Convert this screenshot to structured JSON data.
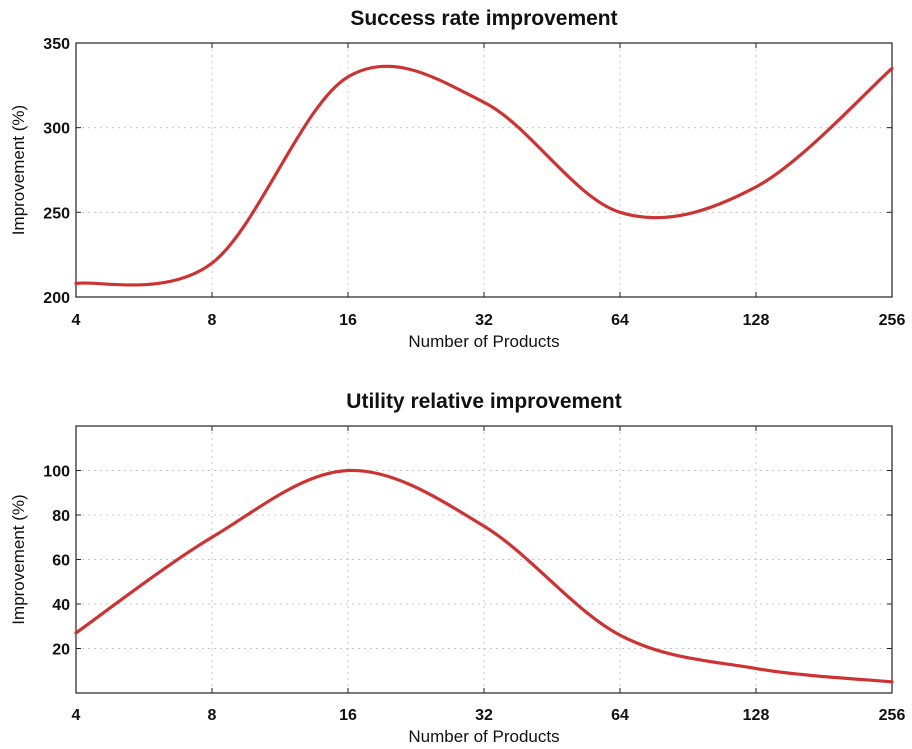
{
  "chart_data": [
    {
      "type": "line",
      "title": "Success rate improvement",
      "xlabel": "Number of Products",
      "ylabel": "Improvement (%)",
      "x_scale": "log2",
      "x": [
        4,
        8,
        16,
        32,
        64,
        128,
        256
      ],
      "x_tick_labels": [
        "4",
        "8",
        "16",
        "32",
        "64",
        "128",
        "256"
      ],
      "ylim": [
        200,
        350
      ],
      "y_ticks": [
        200,
        250,
        300,
        350
      ],
      "y_tick_labels": [
        "200",
        "250",
        "300",
        "350"
      ],
      "grid": true,
      "series": [
        {
          "values": [
            208,
            220,
            330,
            315,
            250,
            265,
            335
          ],
          "color": "#cc3333"
        }
      ]
    },
    {
      "type": "line",
      "title": "Utility relative improvement",
      "xlabel": "Number of Products",
      "ylabel": "Improvement (%)",
      "x_scale": "log2",
      "x": [
        4,
        8,
        16,
        32,
        64,
        128,
        256
      ],
      "x_tick_labels": [
        "4",
        "8",
        "16",
        "32",
        "64",
        "128",
        "256"
      ],
      "ylim": [
        0,
        120
      ],
      "y_ticks": [
        20,
        40,
        60,
        80,
        100
      ],
      "y_tick_labels": [
        "20",
        "40",
        "60",
        "80",
        "100"
      ],
      "grid": true,
      "series": [
        {
          "values": [
            27,
            70,
            100,
            75,
            26,
            11,
            5
          ],
          "color": "#cc3333"
        }
      ]
    }
  ]
}
